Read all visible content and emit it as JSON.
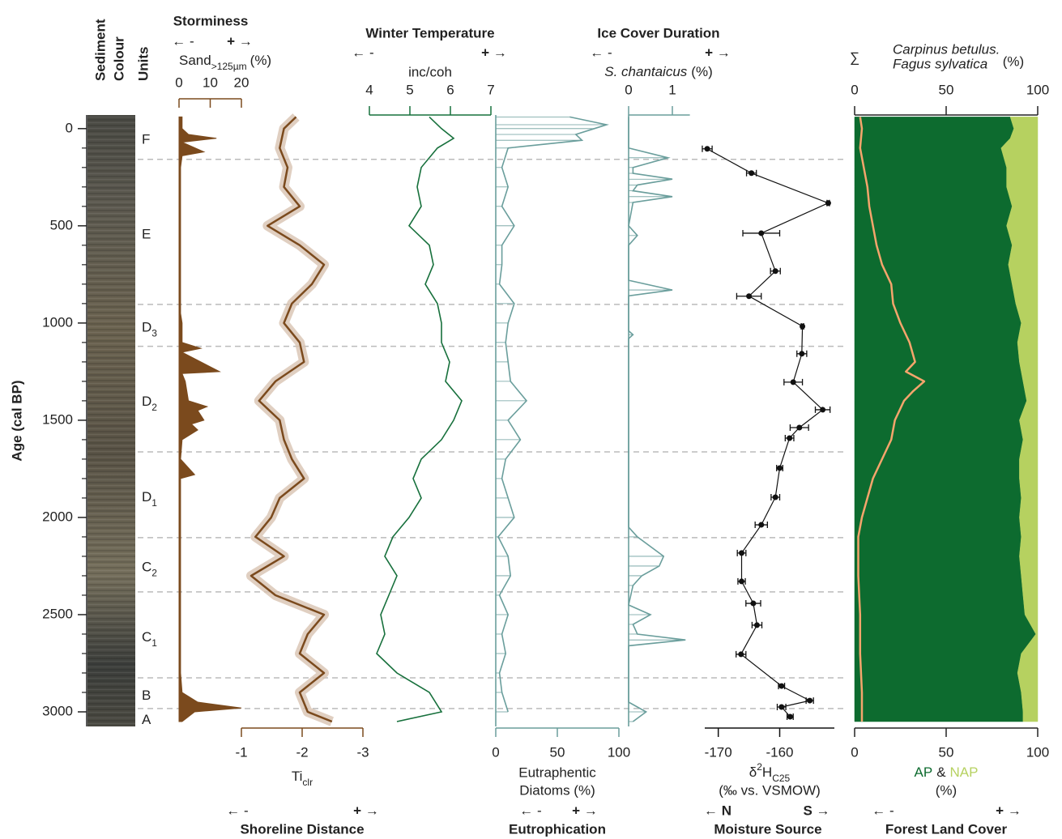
{
  "age_axis": {
    "label": "Age (cal BP)",
    "ylim": [
      -70,
      3075
    ],
    "yticks": [
      0,
      500,
      1000,
      1500,
      2000,
      2500,
      3000
    ],
    "minor_yticks": [
      100,
      200,
      300,
      400,
      600,
      700,
      800,
      900,
      1100,
      1200,
      1300,
      1400,
      1600,
      1700,
      1800,
      1900,
      2100,
      2200,
      2300,
      2400,
      2600,
      2700,
      2800,
      2900
    ]
  },
  "sediment": {
    "title": [
      "Sediment",
      "Colour"
    ]
  },
  "units": {
    "title": "Units",
    "boundaries": [
      158,
      904,
      1120,
      1663,
      2104,
      2383,
      2825,
      2983
    ],
    "labels": [
      {
        "letter": "F"
      },
      {
        "letter": "E"
      },
      {
        "letter": "D",
        "sub": "3"
      },
      {
        "letter": "D",
        "sub": "2"
      },
      {
        "letter": "D",
        "sub": "1"
      },
      {
        "letter": "C",
        "sub": "2"
      },
      {
        "letter": "C",
        "sub": "1"
      },
      {
        "letter": "B"
      },
      {
        "letter": "A"
      }
    ]
  },
  "chart_data": [
    {
      "type": "area",
      "title": "Storminess",
      "arrow_minus": "← -",
      "arrow_plus": "+ →",
      "color": "#7b4a1d",
      "axis_label": {
        "main": "Sand",
        "sub": ">125µm",
        "unit": "(%)"
      },
      "xlim": [
        0,
        20
      ],
      "xticks": [
        0,
        10,
        20
      ],
      "ages": [
        -60,
        0,
        30,
        50,
        70,
        120,
        140,
        200,
        400,
        600,
        800,
        950,
        1000,
        1100,
        1130,
        1150,
        1250,
        1260,
        1300,
        1400,
        1430,
        1450,
        1500,
        1520,
        1550,
        1600,
        1700,
        1780,
        1800,
        1900,
        2000,
        2200,
        2500,
        2800,
        2900,
        2950,
        2980,
        3000,
        3050
      ],
      "values": [
        1,
        1,
        3,
        12,
        1,
        8,
        1,
        0.5,
        0.5,
        0.5,
        0.5,
        0.5,
        1,
        1,
        7,
        1,
        13,
        1,
        2,
        3,
        9,
        6,
        8,
        4,
        6,
        1,
        0.5,
        5,
        0.5,
        0.5,
        0.5,
        0.5,
        0.5,
        0.5,
        1,
        6,
        20,
        5,
        1
      ]
    },
    {
      "type": "line",
      "title": "Shoreline Distance",
      "arrow_minus": "← -",
      "arrow_plus": "+ →",
      "color": "#7b4a1d",
      "axis_label": {
        "main": "Ti",
        "sub": "clr"
      },
      "xlim": [
        -1,
        -3
      ],
      "xticks": [
        -1,
        -2,
        -3
      ],
      "ages": [
        -60,
        0,
        100,
        200,
        300,
        400,
        500,
        600,
        700,
        800,
        900,
        1000,
        1100,
        1200,
        1300,
        1400,
        1500,
        1600,
        1700,
        1800,
        1900,
        2000,
        2100,
        2200,
        2300,
        2400,
        2500,
        2600,
        2700,
        2800,
        2900,
        3000,
        3050
      ],
      "values": [
        -1.9,
        -1.7,
        -1.63,
        -1.76,
        -1.7,
        -1.96,
        -1.43,
        -1.96,
        -2.36,
        -2.16,
        -1.83,
        -1.7,
        -1.96,
        -2.03,
        -1.56,
        -1.29,
        -1.63,
        -1.7,
        -1.83,
        -2.03,
        -1.63,
        -1.49,
        -1.23,
        -1.7,
        -1.16,
        -1.56,
        -2.36,
        -2.09,
        -1.96,
        -2.36,
        -1.96,
        -2.09,
        -2.49
      ]
    },
    {
      "type": "line",
      "title": "Winter Temperature",
      "arrow_minus": "← -",
      "arrow_plus": "+ →",
      "color": "#17703c",
      "axis_label": {
        "main": "inc/coh"
      },
      "xlim": [
        4,
        7
      ],
      "xticks": [
        4,
        5,
        6,
        7
      ],
      "ages": [
        -60,
        0,
        50,
        100,
        200,
        300,
        400,
        500,
        600,
        700,
        800,
        900,
        1000,
        1100,
        1200,
        1300,
        1400,
        1500,
        1600,
        1700,
        1800,
        1900,
        2000,
        2100,
        2200,
        2300,
        2400,
        2500,
        2600,
        2700,
        2800,
        2900,
        3000,
        3050
      ],
      "values": [
        5.48,
        5.78,
        6.08,
        5.68,
        5.28,
        5.18,
        5.28,
        4.98,
        5.48,
        5.58,
        5.38,
        5.68,
        5.78,
        5.78,
        5.98,
        5.88,
        6.28,
        6.08,
        5.78,
        5.28,
        5.08,
        5.28,
        4.98,
        4.58,
        4.38,
        4.68,
        4.48,
        4.28,
        4.38,
        4.18,
        4.68,
        5.48,
        5.78,
        4.68
      ]
    },
    {
      "type": "samples",
      "title": "Eutrophication",
      "arrow_minus": "← -",
      "arrow_plus": "+ →",
      "color": "#6a9e9c",
      "axis_label": {
        "line1": "Eutraphentic",
        "line2": "Diatoms (%)"
      },
      "xlim": [
        0,
        100
      ],
      "xticks": [
        0,
        50,
        100
      ],
      "ages": [
        -60,
        -20,
        0,
        30,
        60,
        100,
        200,
        300,
        400,
        500,
        600,
        700,
        800,
        900,
        1000,
        1100,
        1200,
        1300,
        1400,
        1500,
        1600,
        1700,
        1800,
        1900,
        2000,
        2100,
        2200,
        2300,
        2400,
        2500,
        2600,
        2700,
        2800,
        2900,
        3000
      ],
      "values": [
        60,
        90,
        80,
        65,
        70,
        10,
        5,
        10,
        5,
        15,
        5,
        5,
        3,
        15,
        10,
        8,
        10,
        12,
        25,
        10,
        20,
        8,
        5,
        10,
        15,
        2,
        10,
        12,
        3,
        10,
        5,
        8,
        3,
        5,
        10
      ]
    },
    {
      "type": "samples",
      "title": "Ice Cover Duration",
      "arrow_minus": "← -",
      "arrow_plus": "+ →",
      "color": "#6a9e9c",
      "axis_label": {
        "main": "S. chantaicus",
        "unit": "(%)"
      },
      "xlim": [
        0,
        1.4
      ],
      "xticks": [
        0,
        1
      ],
      "ages": [
        -60,
        100,
        150,
        200,
        230,
        260,
        290,
        320,
        350,
        380,
        500,
        550,
        600,
        780,
        830,
        860,
        1040,
        1060,
        1080,
        2050,
        2100,
        2200,
        2250,
        2300,
        2350,
        2450,
        2500,
        2550,
        2600,
        2630,
        2660,
        2950,
        3000,
        3050
      ],
      "values": [
        0,
        0,
        0.9,
        0.1,
        0.1,
        1.0,
        0.2,
        0.1,
        1.0,
        0.1,
        0,
        0.2,
        0,
        0,
        1.0,
        0,
        0,
        0.1,
        0,
        0,
        0.2,
        0.8,
        0.7,
        0.3,
        0.1,
        0,
        0.5,
        0.1,
        0.2,
        1.3,
        0,
        0,
        0.4,
        0.1
      ]
    },
    {
      "type": "scatter",
      "title": "Moisture Source",
      "arrow_minus": "← N",
      "arrow_plus": "S →",
      "color": "#111111",
      "axis_label": {
        "pre": "δ",
        "sup": "2",
        "main": "H",
        "sub": "C25",
        "line2": "(‰ vs. VSMOW)"
      },
      "xlim": [
        -172.2,
        -151.1
      ],
      "xticks": [
        -170,
        -160
      ],
      "ages": [
        104,
        229,
        383,
        538,
        733,
        862,
        1017,
        1158,
        1304,
        1446,
        1538,
        1592,
        1746,
        1896,
        2038,
        2183,
        2329,
        2442,
        2554,
        2704,
        2867,
        2942,
        2975,
        3025
      ],
      "values": [
        -171.8,
        -164.6,
        -152.1,
        -163.0,
        -160.7,
        -165.0,
        -156.3,
        -156.4,
        -157.8,
        -153.0,
        -156.8,
        -158.4,
        -160.0,
        -160.7,
        -163.0,
        -166.2,
        -166.2,
        -164.3,
        -163.7,
        -166.3,
        -159.7,
        -155.1,
        -159.7,
        -158.3
      ],
      "errors": [
        0.8,
        0.8,
        0.2,
        3,
        0.8,
        2,
        0.2,
        0.8,
        1.5,
        1.2,
        1.5,
        0.7,
        0.5,
        0.7,
        1,
        0.7,
        0.6,
        1.2,
        0.8,
        0.8,
        0.5,
        0.6,
        0.7,
        0.5
      ]
    },
    {
      "type": "stacked_area",
      "title": "Forest Land Cover",
      "arrow_minus": "← -",
      "arrow_plus": "+ →",
      "color": "#0d6b2f",
      "axis_label": {
        "and": "&",
        "unit": "(%)"
      },
      "xlim": [
        0,
        100
      ],
      "xticks": [
        0,
        50,
        100
      ],
      "ages": [
        -60,
        0,
        50,
        100,
        200,
        300,
        400,
        500,
        600,
        700,
        800,
        900,
        1000,
        1100,
        1200,
        1300,
        1400,
        1500,
        1600,
        1700,
        1800,
        1900,
        2000,
        2100,
        2200,
        2300,
        2400,
        2500,
        2600,
        2700,
        2800,
        2900,
        3000,
        3050
      ],
      "series": [
        {
          "name": "AP",
          "color": "#0d6b2f",
          "values": [
            85,
            87,
            85,
            80,
            83,
            83,
            86,
            83,
            86,
            84,
            86,
            88,
            91,
            89,
            90,
            92,
            94,
            90,
            92,
            90,
            90,
            91,
            90,
            91,
            90,
            91,
            92,
            93,
            99,
            91,
            89,
            91,
            92,
            92
          ]
        },
        {
          "name": "NAP",
          "color": "#b6d160",
          "values": [
            15,
            13,
            15,
            20,
            17,
            17,
            14,
            17,
            14,
            16,
            14,
            12,
            9,
            11,
            10,
            8,
            6,
            10,
            8,
            10,
            10,
            9,
            10,
            9,
            10,
            9,
            8,
            7,
            1,
            9,
            11,
            9,
            8,
            8
          ]
        }
      ],
      "line": {
        "symbol": "∑",
        "name": [
          "Carpinus betulus.",
          "Fagus sylvatica"
        ],
        "unit": "(%)",
        "color": "#f5a56c",
        "ages": [
          -60,
          0,
          100,
          200,
          300,
          400,
          500,
          600,
          700,
          800,
          900,
          1000,
          1100,
          1200,
          1250,
          1300,
          1350,
          1400,
          1500,
          1600,
          1700,
          1800,
          1900,
          2000,
          2100,
          2300,
          2500,
          2700,
          2900,
          3000,
          3050
        ],
        "values": [
          3,
          4,
          3,
          5,
          7,
          8,
          10,
          12,
          15,
          20,
          21,
          25,
          30,
          33,
          28,
          38,
          32,
          27,
          22,
          20,
          15,
          10,
          7,
          4,
          2,
          2,
          3,
          3,
          4,
          4,
          4
        ]
      }
    }
  ]
}
